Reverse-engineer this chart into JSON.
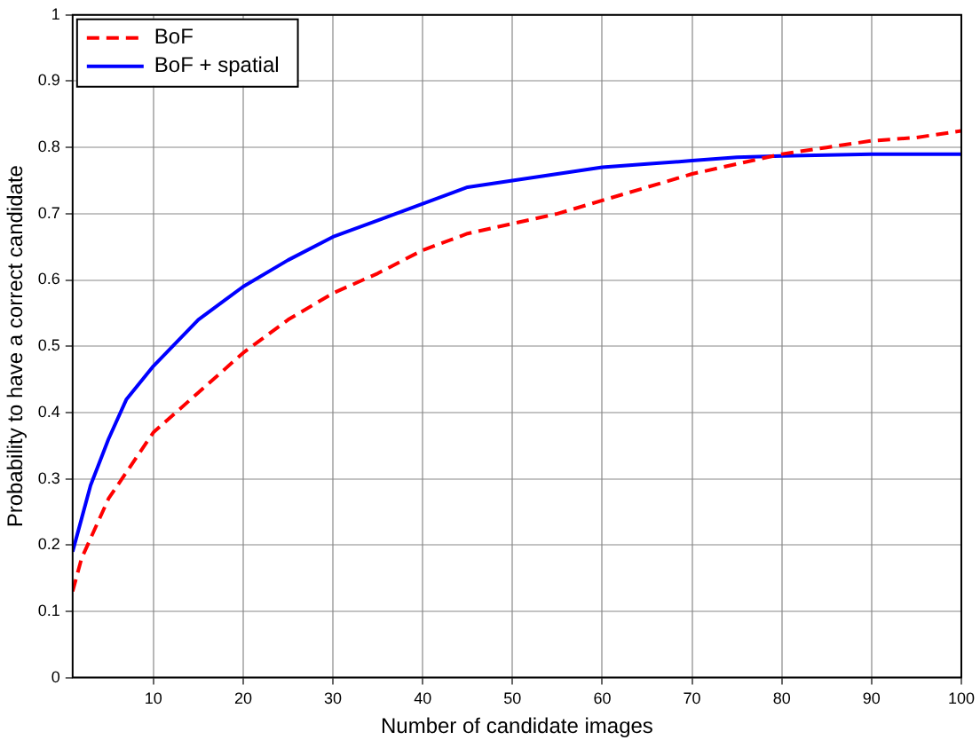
{
  "chart_data": {
    "type": "line",
    "xlabel": "Number of candidate images",
    "ylabel": "Probability to have a correct candidate",
    "xlim": [
      1,
      100
    ],
    "xticks": [
      10,
      20,
      30,
      40,
      50,
      60,
      70,
      80,
      90,
      100
    ],
    "ylim": [
      0,
      1
    ],
    "yticks": [
      0,
      0.1,
      0.2,
      0.3,
      0.4,
      0.5,
      0.6,
      0.7,
      0.8,
      0.9,
      1
    ],
    "grid": true,
    "legend": "top left",
    "marker": "none",
    "series": [
      {
        "name": "BoF",
        "color": "#ff0000",
        "line_style": "dashed",
        "x": [
          1,
          2,
          3,
          5,
          7,
          10,
          15,
          20,
          25,
          30,
          35,
          40,
          45,
          50,
          55,
          60,
          65,
          70,
          75,
          80,
          85,
          90,
          95,
          100
        ],
        "values": [
          0.13,
          0.18,
          0.21,
          0.27,
          0.31,
          0.37,
          0.43,
          0.49,
          0.54,
          0.58,
          0.61,
          0.645,
          0.67,
          0.685,
          0.7,
          0.72,
          0.74,
          0.76,
          0.775,
          0.79,
          0.8,
          0.81,
          0.815,
          0.825
        ]
      },
      {
        "name": "BoF + spatial",
        "color": "#0000ff",
        "line_style": "solid",
        "x": [
          1,
          2,
          3,
          5,
          7,
          10,
          15,
          20,
          25,
          30,
          35,
          40,
          45,
          50,
          55,
          60,
          65,
          70,
          75,
          80,
          90,
          100
        ],
        "values": [
          0.19,
          0.24,
          0.29,
          0.36,
          0.42,
          0.47,
          0.54,
          0.59,
          0.63,
          0.665,
          0.69,
          0.715,
          0.74,
          0.75,
          0.76,
          0.77,
          0.775,
          0.78,
          0.785,
          0.787,
          0.79,
          0.79
        ]
      }
    ]
  }
}
